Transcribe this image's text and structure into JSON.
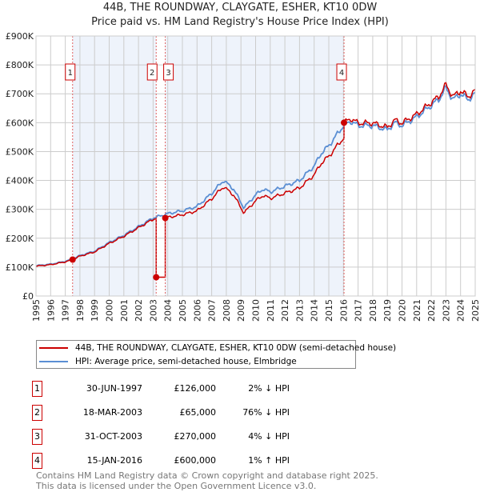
{
  "chart_data": {
    "type": "line",
    "title": "44B, THE ROUNDWAY, CLAYGATE, ESHER, KT10 0DW",
    "subtitle": "Price paid vs. HM Land Registry's House Price Index (HPI)",
    "xlim": [
      1995,
      2025
    ],
    "ylim": [
      0,
      900000
    ],
    "x_ticks": [
      "1995",
      "1996",
      "1997",
      "1998",
      "1999",
      "2000",
      "2001",
      "2002",
      "2003",
      "2004",
      "2005",
      "2006",
      "2007",
      "2008",
      "2009",
      "2010",
      "2011",
      "2012",
      "2013",
      "2014",
      "2015",
      "2016",
      "2017",
      "2018",
      "2019",
      "2020",
      "2021",
      "2022",
      "2023",
      "2024",
      "2025"
    ],
    "y_ticks": [
      {
        "v": 0,
        "label": "£0"
      },
      {
        "v": 100000,
        "label": "£100K"
      },
      {
        "v": 200000,
        "label": "£200K"
      },
      {
        "v": 300000,
        "label": "£300K"
      },
      {
        "v": 400000,
        "label": "£400K"
      },
      {
        "v": 500000,
        "label": "£500K"
      },
      {
        "v": 600000,
        "label": "£600K"
      },
      {
        "v": 700000,
        "label": "£700K"
      },
      {
        "v": 800000,
        "label": "£800K"
      },
      {
        "v": 900000,
        "label": "£900K"
      }
    ],
    "grid": true,
    "series": [
      {
        "name": "HPI: Average price, semi-detached house, Elmbridge",
        "color": "#5b8fd4",
        "x": [
          1995,
          1996,
          1997,
          1997.5,
          1998,
          1999,
          2000,
          2001,
          2002,
          2003,
          2004,
          2005,
          2006,
          2007,
          2007.8,
          2008.5,
          2009.2,
          2010,
          2010.5,
          2011,
          2012,
          2013,
          2014,
          2014.5,
          2015,
          2015.5,
          2016,
          2016.5,
          2017,
          2018,
          2019,
          2019.5,
          2020,
          2021,
          2021.5,
          2022,
          2022.5,
          2023,
          2023.5,
          2024,
          2024.5,
          2025
        ],
        "y": [
          105000,
          110000,
          120000,
          128000,
          140000,
          155000,
          185000,
          210000,
          240000,
          270000,
          285000,
          295000,
          310000,
          355000,
          400000,
          370000,
          305000,
          350000,
          370000,
          360000,
          380000,
          400000,
          450000,
          495000,
          520000,
          555000,
          590000,
          605000,
          590000,
          590000,
          575000,
          600000,
          590000,
          620000,
          640000,
          660000,
          680000,
          720000,
          680000,
          700000,
          680000,
          700000
        ]
      },
      {
        "name": "44B, THE ROUNDWAY, CLAYGATE, ESHER, KT10 0DW (semi-detached house)",
        "color": "#cc0000"
      }
    ],
    "sales": [
      {
        "id": "1",
        "x": 1997.5,
        "date": "30-JUN-1997",
        "price": 126000,
        "price_label": "£126,000",
        "hpi": "2% ↓ HPI"
      },
      {
        "id": "2",
        "x": 2003.21,
        "date": "18-MAR-2003",
        "price": 65000,
        "price_label": "£65,000",
        "hpi": "76% ↓ HPI"
      },
      {
        "id": "3",
        "x": 2003.83,
        "date": "31-OCT-2003",
        "price": 270000,
        "price_label": "£270,000",
        "hpi": "4% ↓ HPI"
      },
      {
        "id": "4",
        "x": 2016.04,
        "date": "15-JAN-2016",
        "price": 600000,
        "price_label": "£600,000",
        "hpi": "1% ↑ HPI"
      }
    ]
  },
  "legend": {
    "red": "44B, THE ROUNDWAY, CLAYGATE, ESHER, KT10 0DW (semi-detached house)",
    "blue": "HPI: Average price, semi-detached house, Elmbridge"
  },
  "footer": {
    "line1": "Contains HM Land Registry data © Crown copyright and database right 2025.",
    "line2": "This data is licensed under the Open Government Licence v3.0."
  }
}
